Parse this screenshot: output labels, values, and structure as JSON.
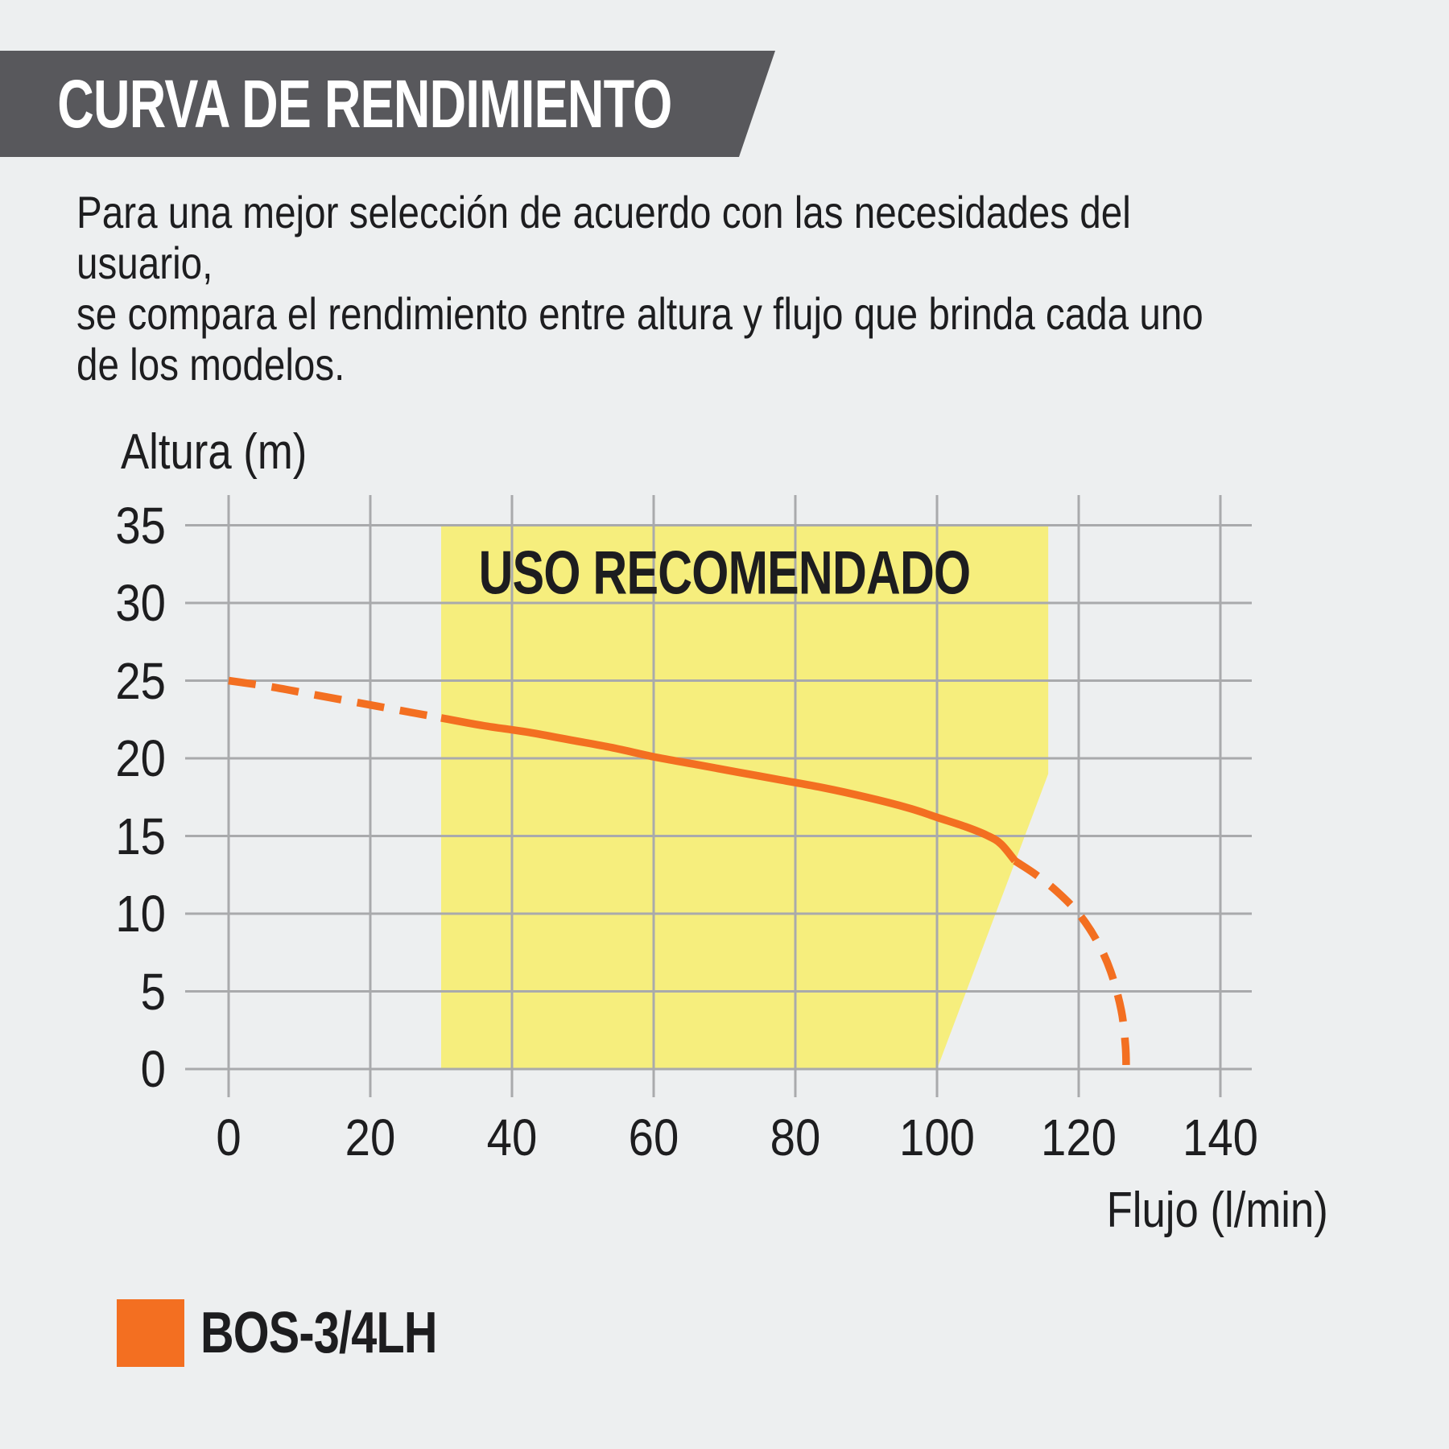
{
  "header": {
    "title": "CURVA DE RENDIMIENTO"
  },
  "intro": {
    "text": "Para una mejor selección de acuerdo con las necesidades del usuario,\nse compara el rendimiento entre altura y flujo que brinda cada uno\nde los modelos."
  },
  "colors": {
    "background": "#edeff0",
    "banner": "#58585c",
    "text": "#1d1d1f",
    "grid": "#a9aaac",
    "region_fill": "#f6ee7d",
    "curve_orange": "#f36f21",
    "title_text": "#ffffff"
  },
  "chart_data": {
    "type": "line",
    "title": "",
    "xlabel": "Flujo (l/min)",
    "ylabel": "Altura (m)",
    "xlim": [
      0,
      140
    ],
    "ylim": [
      0,
      35
    ],
    "x_ticks": [
      0,
      20,
      40,
      60,
      80,
      100,
      120,
      140
    ],
    "y_ticks": [
      0,
      5,
      10,
      15,
      20,
      25,
      30,
      35
    ],
    "grid": true,
    "region": {
      "label": "USO RECOMENDADO",
      "fill": "#f6ee7d",
      "points": [
        [
          30,
          35
        ],
        [
          115.7,
          35
        ],
        [
          115.7,
          19
        ],
        [
          100,
          0
        ],
        [
          30,
          0
        ]
      ]
    },
    "series": [
      {
        "name": "BOS-3/4LH",
        "color": "#f36f21",
        "segments": [
          {
            "style": "dashed",
            "points": [
              [
                0,
                25
              ],
              [
                6,
                24.6
              ],
              [
                12,
                24.1
              ],
              [
                18,
                23.6
              ],
              [
                24,
                23.1
              ],
              [
                30,
                22.6
              ]
            ]
          },
          {
            "style": "solid",
            "points": [
              [
                30,
                22.6
              ],
              [
                36,
                22.1
              ],
              [
                42,
                21.7
              ],
              [
                48,
                21.2
              ],
              [
                54,
                20.7
              ],
              [
                60,
                20.1
              ],
              [
                66,
                19.6
              ],
              [
                72,
                19.1
              ],
              [
                78,
                18.6
              ],
              [
                84,
                18.1
              ],
              [
                90,
                17.5
              ],
              [
                96,
                16.8
              ],
              [
                100,
                16.2
              ],
              [
                104,
                15.6
              ],
              [
                107,
                15.05
              ],
              [
                109,
                14.5
              ],
              [
                111,
                13.4
              ]
            ]
          },
          {
            "style": "dashed",
            "points": [
              [
                111,
                13.4
              ],
              [
                114,
                12.5
              ],
              [
                117,
                11.4
              ],
              [
                120,
                10
              ],
              [
                122.5,
                8.3
              ],
              [
                124.5,
                6.3
              ],
              [
                126,
                3.8
              ],
              [
                126.6,
                1.5
              ],
              [
                126.7,
                0
              ]
            ]
          }
        ]
      }
    ],
    "legend_position": "bottom-left"
  },
  "legend": {
    "items": [
      {
        "label": "BOS-3/4LH",
        "color": "#f36f21"
      }
    ]
  }
}
